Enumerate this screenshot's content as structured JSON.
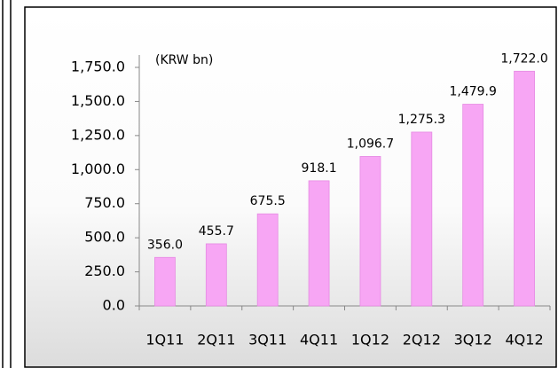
{
  "chart_data": {
    "type": "bar",
    "annotation": "(KRW bn)",
    "categories": [
      "1Q11",
      "2Q11",
      "3Q11",
      "4Q11",
      "1Q12",
      "2Q12",
      "3Q12",
      "4Q12"
    ],
    "values": [
      356.0,
      455.7,
      675.5,
      918.1,
      1096.7,
      1275.3,
      1479.9,
      1722.0
    ],
    "value_labels": [
      "356.0",
      "455.7",
      "675.5",
      "918.1",
      "1,096.7",
      "1,275.3",
      "1,479.9",
      "1,722.0"
    ],
    "color": "#f7a6f4",
    "ylim": [
      0,
      1750
    ],
    "yticks": [
      {
        "value": 0,
        "label": "0.0"
      },
      {
        "value": 250,
        "label": "250.0"
      },
      {
        "value": 500,
        "label": "500.0"
      },
      {
        "value": 750,
        "label": "750.0"
      },
      {
        "value": 1000,
        "label": "1,000.0"
      },
      {
        "value": 1250,
        "label": "1,250.0"
      },
      {
        "value": 1500,
        "label": "1,500.0"
      },
      {
        "value": 1750,
        "label": "1,750.0"
      }
    ],
    "grid": false
  }
}
